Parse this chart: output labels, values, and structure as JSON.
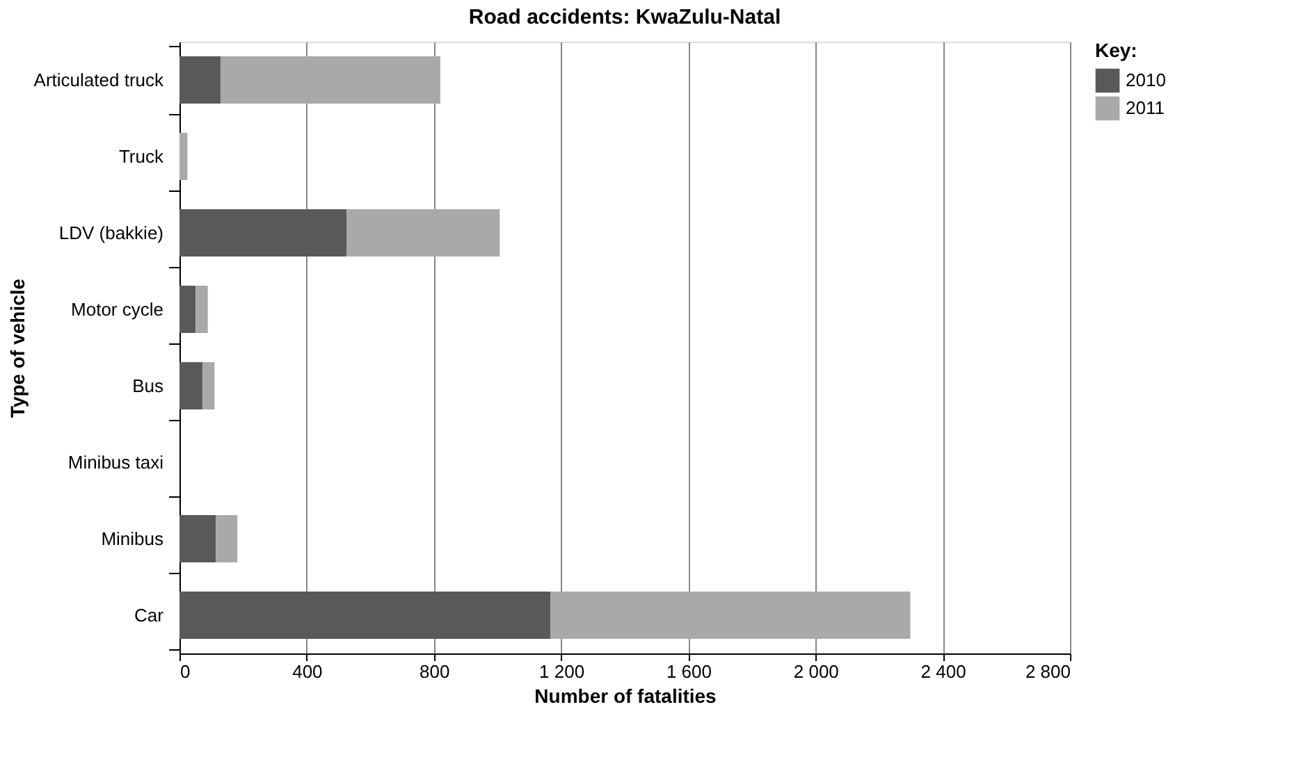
{
  "chart_data": {
    "type": "bar",
    "orientation": "horizontal",
    "stacked": true,
    "title": "Road accidents: KwaZulu-Natal",
    "xlabel": "Number of fatalities",
    "ylabel": "Type of vehicle",
    "legend_title": "Key:",
    "categories": [
      "Articulated truck",
      "Truck",
      "LDV (bakkie)",
      "Motor cycle",
      "Bus",
      "Minibus taxi",
      "Minibus",
      "Car"
    ],
    "series": [
      {
        "name": "2010",
        "color": "#595959",
        "values": [
          130,
          0,
          525,
          51,
          72,
          null,
          114,
          1167
        ]
      },
      {
        "name": "2011",
        "color": "#a9a9a9",
        "values": [
          690,
          25,
          482,
          38,
          38,
          null,
          68,
          1131
        ]
      }
    ],
    "xlim": [
      0,
      2800
    ],
    "xticks": [
      {
        "value": 0,
        "label": "0"
      },
      {
        "value": 400,
        "label": "400"
      },
      {
        "value": 800,
        "label": "800"
      },
      {
        "value": 1200,
        "label": "1 200"
      },
      {
        "value": 1600,
        "label": "1 600"
      },
      {
        "value": 2000,
        "label": "2 000"
      },
      {
        "value": 2400,
        "label": "2 400"
      },
      {
        "value": 2800,
        "label": "2 800"
      }
    ],
    "grid": "x",
    "legend": "top right"
  }
}
